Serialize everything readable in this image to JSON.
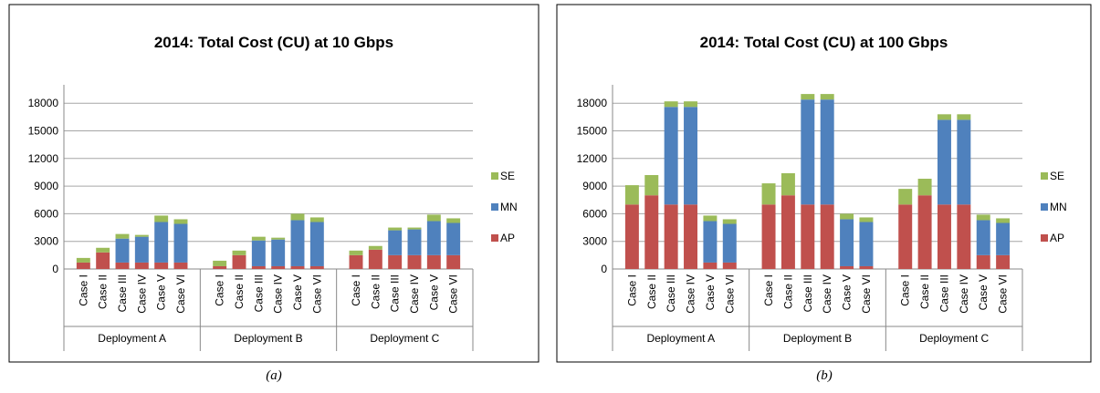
{
  "chart_data": [
    {
      "type": "stacked-bar",
      "title": "2014: Total Cost (CU) at 10 Gbps",
      "caption": "(a)",
      "groups": [
        "Deployment A",
        "Deployment B",
        "Deployment C"
      ],
      "categories": [
        "Case I",
        "Case II",
        "Case III",
        "Case IV",
        "Case V",
        "Case VI",
        "Case I",
        "Case II",
        "Case III",
        "Case IV",
        "Case V",
        "Case VI",
        "Case I",
        "Case II",
        "Case III",
        "Case IV",
        "Case V",
        "Case VI"
      ],
      "series": [
        {
          "name": "AP",
          "color": "#c0504d",
          "values": [
            700,
            1800,
            700,
            700,
            700,
            700,
            300,
            1500,
            300,
            300,
            300,
            300,
            1500,
            2100,
            1500,
            1500,
            1500,
            1500
          ]
        },
        {
          "name": "MN",
          "color": "#4f81bd",
          "values": [
            0,
            0,
            2600,
            2800,
            4400,
            4200,
            0,
            0,
            2800,
            2900,
            5000,
            4800,
            0,
            0,
            2700,
            2800,
            3700,
            3500
          ]
        },
        {
          "name": "SE",
          "color": "#9bbb59",
          "values": [
            500,
            500,
            500,
            200,
            700,
            500,
            600,
            500,
            400,
            200,
            700,
            500,
            500,
            400,
            300,
            200,
            700,
            500
          ]
        }
      ],
      "ylim": [
        0,
        20000
      ],
      "yticks": [
        0,
        3000,
        6000,
        9000,
        12000,
        15000,
        18000
      ],
      "grid": true,
      "legend": "right"
    },
    {
      "type": "stacked-bar",
      "title": "2014: Total Cost (CU) at 100 Gbps",
      "caption": "(b)",
      "groups": [
        "Deployment A",
        "Deployment B",
        "Deployment C"
      ],
      "categories": [
        "Case I",
        "Case II",
        "Case III",
        "Case IV",
        "Case V",
        "Case VI",
        "Case I",
        "Case II",
        "Case III",
        "Case IV",
        "Case V",
        "Case VI",
        "Case I",
        "Case II",
        "Case III",
        "Case IV",
        "Case V",
        "Case VI"
      ],
      "series": [
        {
          "name": "AP",
          "color": "#c0504d",
          "values": [
            7000,
            8000,
            7000,
            7000,
            700,
            700,
            7000,
            8000,
            7000,
            7000,
            300,
            300,
            7000,
            8000,
            7000,
            7000,
            1500,
            1500
          ]
        },
        {
          "name": "MN",
          "color": "#4f81bd",
          "values": [
            0,
            0,
            10600,
            10600,
            4500,
            4200,
            0,
            0,
            11400,
            11400,
            5100,
            4800,
            0,
            0,
            9200,
            9200,
            3800,
            3500
          ]
        },
        {
          "name": "SE",
          "color": "#9bbb59",
          "values": [
            2100,
            2200,
            600,
            600,
            600,
            500,
            2300,
            2400,
            600,
            600,
            600,
            500,
            1700,
            1800,
            600,
            600,
            600,
            500
          ]
        }
      ],
      "ylim": [
        0,
        20000
      ],
      "yticks": [
        0,
        3000,
        6000,
        9000,
        12000,
        15000,
        18000
      ],
      "grid": true,
      "legend": "right"
    }
  ]
}
